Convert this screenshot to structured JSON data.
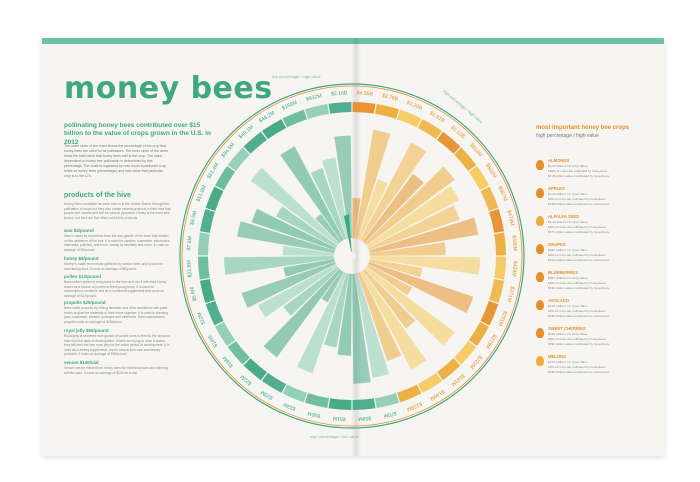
{
  "title": "money bees",
  "subtitle": "pollinating honey bees contributed over $15 billion to the value of crops grown in the U.S. in 2012",
  "intro": "The outer circle of the chart shows the percentage of the crop that honey bees are used for as pollinators. The inner circle of the circle show the total value that honey bees add to the crop. The value dependent on honey bee pollination is determined by this percentage. The chart is organized by how much a particular crop relies on honey bees (percentage) and how value that particular crop is to the U.S.",
  "products": {
    "title": "products of the hive",
    "intro": "Honey bees contribute far more than is in the United States, through the pollination of crops but they also create several products in their hive that people sell, extract and sell for various purposes. Honey is the most well-known, but here are five other useful bee products.",
    "items": [
      {
        "name": "wax $4/pound",
        "text": "Wax is made by secretions from the wax glands of the bees that harden on the abdomen of the bee. It is used for candles, cosmetics, electronics, lubricants, polishes, and more, mostly by dentistry and more. It costs an average of $4/pound."
      },
      {
        "name": "honey $6/pound",
        "text": "Honey is made from nectar gathered by worker bees and is used for sweetening food. It costs an average of $6/pound."
      },
      {
        "name": "pollen $12/pound",
        "text": "Bees collect pollen to bring back to the hive and mix it with their honey stores as a source of protein to feed young bees. It is used for consumption, medicine and as a nutritional supplement and costs an average of $12/pound."
      },
      {
        "name": "propolis $25/pound",
        "text": "Bees make propolis by mixing beeswax and other secretions with plant resins to glue the materials of their home together. It is used in chewing gum, cosmetics, creams, lozenges and ointments. Raw unprocessed propolis costs an average of $25/pound."
      },
      {
        "name": "royal jelly $50/pound",
        "text": "Royal jelly is secreted from glands of worker bees to feed to the larvae in their first few days of development. If bees are trying to raise a queen, they will feed the bee royal jelly for the entire period of development. It is used as a dietary supplement, and in natural skin care and beauty products. It costs an average of $50/pound."
      },
      {
        "name": "venom $140/vial",
        "text": "Venom can be milked from honey bees for medicinal uses and relieving arthritis pain. It costs an average of $140 for a vial."
      }
    ]
  },
  "ring_labels": {
    "top_left": "low percentage / high value",
    "top_right": "high percentage / high value",
    "bottom": "high percentage / low value",
    "left": "low percentage / low value"
  },
  "value_labels": [
    "$4.35B",
    "$3.76B",
    "$3.20B",
    "$1.61B",
    "$1.12B",
    "$914M",
    "$682M",
    "$567M",
    "$478M",
    "$436M",
    "$424M",
    "$371M",
    "$291M",
    "$273M",
    "$222M",
    "$181M",
    "$146M",
    "$128M",
    "$70M",
    "$58M",
    "$51M",
    "$36M",
    "$33M",
    "$28M",
    "$22M",
    "$18M",
    "$14M",
    "$12M",
    "$5.6M",
    "$21.8M",
    "$7.6M",
    "$8.5M",
    "$51.8M",
    "$81.4M",
    "$94.5M",
    "$49.1M",
    "$48.2M",
    "$158M",
    "$632M",
    "$2.16B"
  ],
  "right_panel": {
    "title": "most important honey bee crops",
    "subtitle": "high percentage / high value"
  },
  "crops": [
    {
      "name": "ALMONDS",
      "line1": "$4.35 billion U.S. Crop Value",
      "line2": "100% of crops are pollinated by honeybees",
      "line3": "$4.35 billion value contributed by honeybees",
      "color": "#e58f2c"
    },
    {
      "name": "APPLES",
      "line1": "$3.20 billion U.S. Crop Value",
      "line2": "90% of crops are pollinated by honeybees",
      "line3": "$2.88 billion value contributed by honeybees",
      "color": "#e58f2c"
    },
    {
      "name": "ALFALFA SEED",
      "line1": "$1.12 billion U.S. Crop Value",
      "line2": "60% of crops are pollinated by honeybees",
      "line3": "$671 million value contributed by honeybees",
      "color": "#ecac3a"
    },
    {
      "name": "GRAPES",
      "line1": "$682 million U.S. Crop Value",
      "line2": "90% of crops are pollinated by honeybees",
      "line3": "$614 million value contributed by honeybees",
      "color": "#e58f2c"
    },
    {
      "name": "BLUEBERRIES",
      "line1": "$567 million U.S. Crop Value",
      "line2": "90% of crops are pollinated by honeybees",
      "line3": "$510 million value contributed by honeybees",
      "color": "#e58f2c"
    },
    {
      "name": "AVOCADO",
      "line1": "$478 million U.S. Crop Value",
      "line2": "90% of crops are pollinated by honeybees",
      "line3": "$430 million value contributed by honeybees",
      "color": "#e58f2c"
    },
    {
      "name": "SWEET CHERRIES",
      "line1": "$436 million U.S. Crop Value",
      "line2": "90% of crops are pollinated by honeybees",
      "line3": "$392 million value contributed by honeybees",
      "color": "#e58f2c"
    },
    {
      "name": "MELONS",
      "line1": "$273 million U.S. Crop Value",
      "line2": "90% of crops are pollinated by honeybees",
      "line3": "$246 million value contributed by honeybees",
      "color": "#ecac3a"
    }
  ],
  "colors": {
    "green": "#3fa883",
    "orange": "#e58f2c",
    "yellow": "#f4c95d",
    "paper": "#f6f5f2"
  }
}
